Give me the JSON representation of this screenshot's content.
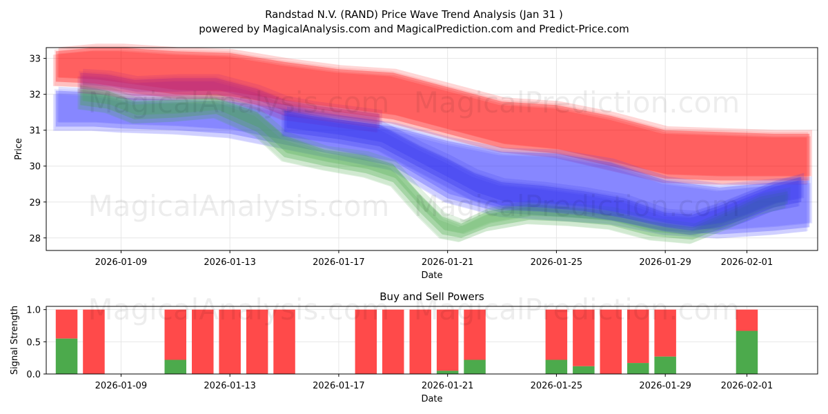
{
  "chart_data": [
    {
      "type": "area",
      "title": "Randstad N.V. (RAND) Price Wave Trend Analysis (Jan 31 )",
      "subtitle": "powered by MagicalAnalysis.com and MagicalPrediction.com and Predict-Price.com",
      "xlabel": "Date",
      "ylabel": "Price",
      "ylim": [
        27.65,
        33.3
      ],
      "xlim": [
        -0.75,
        27.6
      ],
      "grid": true,
      "x_tick_labels": [
        {
          "day": 2,
          "label": "2026-01-09"
        },
        {
          "day": 6,
          "label": "2026-01-13"
        },
        {
          "day": 10,
          "label": "2026-01-17"
        },
        {
          "day": 14,
          "label": "2026-01-21"
        },
        {
          "day": 18,
          "label": "2026-01-25"
        },
        {
          "day": 22,
          "label": "2026-01-29"
        },
        {
          "day": 25,
          "label": "2026-02-01"
        }
      ],
      "y_ticks": [
        28,
        29,
        30,
        31,
        32,
        33
      ],
      "series": [
        {
          "name": "red-band",
          "color": "#ff0000",
          "x": [
            -0.4,
            1,
            2,
            4,
            6,
            8,
            10,
            12,
            14,
            16,
            18,
            20,
            22,
            24,
            26,
            27.3
          ],
          "upper": [
            33.2,
            33.3,
            33.3,
            33.2,
            33.15,
            32.9,
            32.7,
            32.6,
            32.2,
            31.8,
            31.7,
            31.4,
            31.0,
            30.95,
            30.9,
            30.9
          ],
          "lower": [
            32.35,
            32.3,
            32.2,
            32.0,
            31.95,
            31.7,
            31.5,
            31.3,
            30.9,
            30.5,
            30.35,
            30.0,
            29.65,
            29.6,
            29.6,
            29.6
          ]
        },
        {
          "name": "blue-band",
          "color": "#4040ff",
          "x": [
            -0.4,
            1,
            2,
            4,
            6,
            8,
            10,
            12,
            14,
            16,
            18,
            20,
            22,
            24,
            26,
            27.3
          ],
          "upper": [
            32.1,
            32.05,
            31.9,
            31.85,
            31.8,
            31.6,
            31.3,
            31.1,
            30.7,
            30.4,
            30.35,
            30.1,
            29.6,
            29.4,
            29.55,
            29.6
          ],
          "lower": [
            31.1,
            31.1,
            31.05,
            31.0,
            30.9,
            30.6,
            30.3,
            30.0,
            29.1,
            28.7,
            28.6,
            28.5,
            28.2,
            28.1,
            28.2,
            28.3
          ]
        },
        {
          "name": "green-band",
          "color": "#44aa44",
          "x": [
            0.5,
            1.5,
            2.5,
            4,
            5.5,
            7,
            8,
            9.5,
            11,
            12,
            13,
            13.8,
            14.5,
            15.5,
            17,
            18.5,
            20,
            21.5,
            23,
            24.5,
            25.5,
            26.5
          ],
          "upper": [
            32.25,
            32.1,
            31.8,
            31.85,
            31.9,
            31.5,
            30.85,
            30.45,
            30.3,
            30.05,
            29.2,
            28.6,
            28.4,
            28.75,
            28.95,
            28.85,
            28.75,
            28.45,
            28.3,
            28.8,
            29.15,
            29.3
          ],
          "lower": [
            31.7,
            31.6,
            31.3,
            31.35,
            31.45,
            30.95,
            30.25,
            30.0,
            29.8,
            29.55,
            28.7,
            28.1,
            28.0,
            28.3,
            28.5,
            28.45,
            28.35,
            28.05,
            27.95,
            28.4,
            28.75,
            28.95
          ]
        },
        {
          "name": "purple-band",
          "color": "#aa2288",
          "x": [
            0.5,
            1.5,
            2.5,
            4,
            5.5,
            7,
            8,
            9,
            10,
            11.5
          ],
          "upper": [
            32.6,
            32.55,
            32.4,
            32.45,
            32.45,
            32.15,
            31.85,
            31.7,
            31.6,
            31.45
          ],
          "lower": [
            32.15,
            32.1,
            31.95,
            31.95,
            32.0,
            31.7,
            31.4,
            31.3,
            31.2,
            31.05
          ]
        },
        {
          "name": "dark-blue-band",
          "color": "#3030ee",
          "x": [
            8,
            9,
            10,
            11.5,
            13,
            14,
            15,
            16,
            17.5,
            19,
            20.5,
            22,
            23,
            24,
            25,
            26,
            27
          ],
          "upper": [
            31.55,
            31.4,
            31.3,
            31.15,
            30.55,
            30.2,
            29.8,
            29.55,
            29.45,
            29.3,
            29.1,
            28.7,
            28.65,
            28.9,
            29.2,
            29.5,
            29.7
          ],
          "lower": [
            30.95,
            30.85,
            30.75,
            30.55,
            29.95,
            29.55,
            29.15,
            28.9,
            28.85,
            28.75,
            28.55,
            28.3,
            28.2,
            28.3,
            28.55,
            28.85,
            29.0
          ]
        }
      ]
    },
    {
      "type": "bar",
      "title": "Buy and Sell Powers",
      "xlabel": "Date",
      "ylabel": "Signal Strength",
      "ylim": [
        0,
        1.05
      ],
      "xlim": [
        -0.75,
        27.6
      ],
      "y_ticks": [
        0.0,
        0.5,
        1.0
      ],
      "y_tick_labels": [
        "0.0",
        "0.5",
        "1.0"
      ],
      "x_tick_labels": [
        {
          "day": 2,
          "label": "2026-01-09"
        },
        {
          "day": 6,
          "label": "2026-01-13"
        },
        {
          "day": 10,
          "label": "2026-01-17"
        },
        {
          "day": 14,
          "label": "2026-01-21"
        },
        {
          "day": 18,
          "label": "2026-01-25"
        },
        {
          "day": 22,
          "label": "2026-01-29"
        },
        {
          "day": 25,
          "label": "2026-02-01"
        }
      ],
      "series": [
        {
          "name": "Buy",
          "color": "#4caa4c"
        },
        {
          "name": "Sell",
          "color": "#ff4a4a"
        }
      ],
      "bars": [
        {
          "day": 0,
          "buy": 0.55
        },
        {
          "day": 1,
          "buy": 0.0
        },
        {
          "day": 4,
          "buy": 0.22
        },
        {
          "day": 5,
          "buy": 0.0
        },
        {
          "day": 6,
          "buy": 0.0
        },
        {
          "day": 7,
          "buy": 0.0
        },
        {
          "day": 8,
          "buy": 0.0
        },
        {
          "day": 11,
          "buy": 0.0
        },
        {
          "day": 12,
          "buy": 0.0
        },
        {
          "day": 13,
          "buy": 0.0
        },
        {
          "day": 14,
          "buy": 0.05
        },
        {
          "day": 15,
          "buy": 0.22
        },
        {
          "day": 18,
          "buy": 0.22
        },
        {
          "day": 19,
          "buy": 0.12
        },
        {
          "day": 20,
          "buy": 0.0
        },
        {
          "day": 21,
          "buy": 0.17
        },
        {
          "day": 22,
          "buy": 0.27
        },
        {
          "day": 25,
          "buy": 0.67
        }
      ]
    }
  ],
  "watermarks": [
    "MagicalAnalysis.com",
    "MagicalPrediction.com"
  ]
}
